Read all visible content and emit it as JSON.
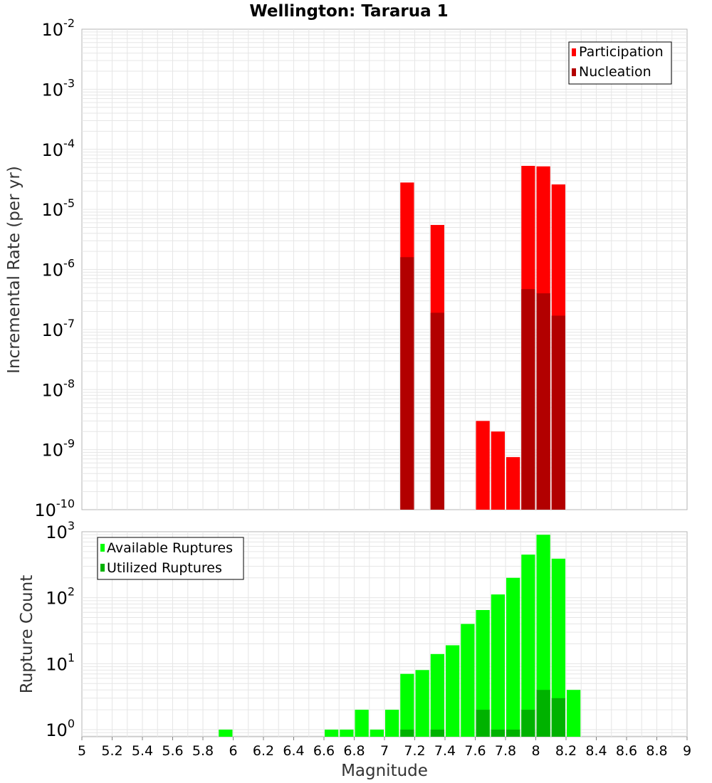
{
  "title": "Wellington: Tararua 1",
  "colors": {
    "participation": "#ff0000",
    "nucleation": "#b20000",
    "available": "#00ff00",
    "utilized": "#00b200",
    "grid": "#e6e6e6"
  },
  "chart_data": [
    {
      "type": "bar",
      "title": "Wellington: Tararua 1",
      "ylabel": "Incremental Rate (per yr)",
      "yscale": "log",
      "ylim": [
        1e-10,
        0.01
      ],
      "xlim": [
        5,
        9
      ],
      "grid": true,
      "legend_position": "top-right",
      "y_ticks": [
        {
          "base": "10",
          "exp": "-10",
          "value": 1e-10
        },
        {
          "base": "10",
          "exp": "-9",
          "value": 1e-09
        },
        {
          "base": "10",
          "exp": "-8",
          "value": 1e-08
        },
        {
          "base": "10",
          "exp": "-7",
          "value": 1e-07
        },
        {
          "base": "10",
          "exp": "-6",
          "value": 1e-06
        },
        {
          "base": "10",
          "exp": "-5",
          "value": 1e-05
        },
        {
          "base": "10",
          "exp": "-4",
          "value": 0.0001
        },
        {
          "base": "10",
          "exp": "-3",
          "value": 0.001
        },
        {
          "base": "10",
          "exp": "-2",
          "value": 0.01
        }
      ],
      "bin_width": 0.1,
      "series": [
        {
          "name": "Participation",
          "x": [
            7.15,
            7.35,
            7.65,
            7.75,
            7.85,
            7.95,
            8.05,
            8.15
          ],
          "values": [
            2.8e-05,
            5.5e-06,
            3e-09,
            2e-09,
            7.5e-10,
            5.3e-05,
            5.2e-05,
            2.6e-05
          ]
        },
        {
          "name": "Nucleation",
          "x": [
            7.15,
            7.35,
            7.95,
            8.05,
            8.15
          ],
          "values": [
            1.6e-06,
            1.9e-07,
            4.7e-07,
            4e-07,
            1.7e-07
          ]
        }
      ]
    },
    {
      "type": "bar",
      "xlabel": "Magnitude",
      "ylabel": "Rupture Count",
      "yscale": "log",
      "ylim": [
        0.78,
        1000
      ],
      "xlim": [
        5,
        9
      ],
      "grid": true,
      "legend_position": "top-left",
      "x_ticks": [
        "5",
        "5.2",
        "5.4",
        "5.6",
        "5.8",
        "6",
        "6.2",
        "6.4",
        "6.6",
        "6.8",
        "7",
        "7.2",
        "7.4",
        "7.6",
        "7.8",
        "8",
        "8.2",
        "8.4",
        "8.6",
        "8.8",
        "9"
      ],
      "y_ticks": [
        {
          "base": "10",
          "exp": "0",
          "value": 1
        },
        {
          "base": "10",
          "exp": "1",
          "value": 10
        },
        {
          "base": "10",
          "exp": "2",
          "value": 100
        },
        {
          "base": "10",
          "exp": "3",
          "value": 1000
        }
      ],
      "bin_width": 0.1,
      "series": [
        {
          "name": "Available Ruptures",
          "x": [
            5.95,
            6.65,
            6.75,
            6.85,
            6.95,
            7.05,
            7.15,
            7.25,
            7.35,
            7.45,
            7.55,
            7.65,
            7.75,
            7.85,
            7.95,
            8.05,
            8.15,
            8.25
          ],
          "values": [
            1,
            1,
            1,
            2,
            1,
            2,
            7,
            8,
            14,
            19,
            40,
            65,
            112,
            200,
            450,
            900,
            390,
            4
          ]
        },
        {
          "name": "Utilized Ruptures",
          "x": [
            7.15,
            7.35,
            7.65,
            7.75,
            7.85,
            7.95,
            8.05,
            8.15
          ],
          "values": [
            1,
            1,
            2,
            1,
            1,
            2,
            4,
            3
          ]
        }
      ]
    }
  ]
}
